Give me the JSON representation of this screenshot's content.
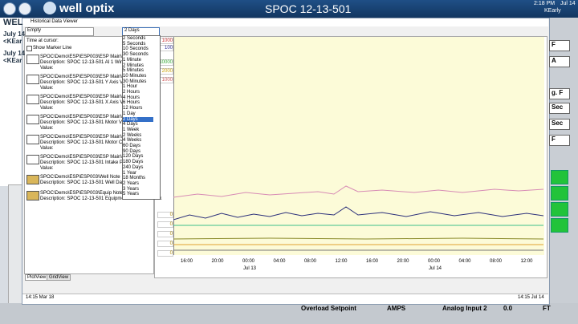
{
  "topbar": {
    "brand": "well optix",
    "title": "SPOC 12-13-501",
    "time": "2:18 PM",
    "date": "Jul 14",
    "user": "KEarly"
  },
  "background": {
    "left": [
      "WEL",
      "July 14",
      "<KEar",
      "July 14",
      "<KEar"
    ],
    "right": [
      "F",
      "A",
      "g. F",
      "Sec",
      "Sec",
      "F"
    ],
    "bottom": [
      "Overload Setpoint",
      "AMPS",
      "Analog Input 2",
      "0.0",
      "FT"
    ]
  },
  "viewer": {
    "title": "Historical Data Viewer",
    "filter": "Empty",
    "range": "2 Days",
    "range_options": [
      "2 Seconds",
      "5 Seconds",
      "10 Seconds",
      "30 Seconds",
      "1 Minute",
      "2 Minutes",
      "5 Minutes",
      "10 Minutes",
      "30 Minutes",
      "1 Hour",
      "2 Hours",
      "4 Hours",
      "6 Hours",
      "12 Hours",
      "1 Day",
      "2 Days",
      "4 Days",
      "1 Week",
      "2 Weeks",
      "4 Weeks",
      "60 Days",
      "90 Days",
      "120 Days",
      "180 Days",
      "240 Days",
      "1 Year",
      "18 Months",
      "2 Years",
      "3 Years",
      "5 Years"
    ],
    "time_at_cursor": "Time at cursor:",
    "show_marker": "Show Marker Line",
    "series": [
      {
        "path": "SPOC\\Demo\\ESP\\ESP003\\ESP Main\\PD\\Dh",
        "description": "Description: SPOC 12-13-501 AI 1 Winding",
        "value": "Value:"
      },
      {
        "path": "SPOC\\Demo\\ESP\\ESP003\\ESP Main\\PD\\Dh",
        "description": "Description: SPOC 12-13-501 Y Axis Vibrat",
        "value": "Value:"
      },
      {
        "path": "SPOC\\Demo\\ESP\\ESP003\\ESP Main\\PD\\Dh",
        "description": "Description: SPOC 12-13-501 X Axis Vibrat",
        "value": "Value:"
      },
      {
        "path": "SPOC\\Demo\\ESP\\ESP003\\ESP Main\\PD\\Dh",
        "description": "Description: SPOC 12-13-501 Motor Voltag",
        "value": "Value:"
      },
      {
        "path": "SPOC\\Demo\\ESP\\ESP003\\ESP Main\\PD\\Dh",
        "description": "Description: SPOC 12-13-501 Motor Curren",
        "value": "Value:"
      },
      {
        "path": "SPOC\\Demo\\ESP\\ESP003\\ESP Main\\PD\\Dh",
        "description": "Description: SPOC 12-13-501 Intake Press",
        "value": "Value:"
      }
    ],
    "notes": [
      {
        "path": "SPOC\\Demo\\ESP\\ESP003\\Well Note",
        "description": "Description: SPOC 12-13-501 Well Data No"
      },
      {
        "path": "SPOC\\Demo\\ESP\\ESP003\\Equip Notebook",
        "description": "Description: SPOC 12-13-501 Equipment Data Notebook"
      }
    ],
    "axis_labels": [
      "1000",
      "100",
      "10000",
      "2000",
      "1000"
    ],
    "zero_labels": [
      "0",
      "0",
      "0",
      "0",
      "0"
    ],
    "x_ticks": [
      "16:00",
      "20:00",
      "00:00",
      "04:00",
      "08:00",
      "12:00",
      "16:00",
      "20:00",
      "00:00",
      "04:00",
      "08:00",
      "12:00"
    ],
    "x_dates": [
      "Jul 13",
      "Jul 14"
    ],
    "tabs": [
      "PlotView",
      "GridView"
    ],
    "status_left": "14:15  Mar 18",
    "status_right": "14:15  Jul 14"
  }
}
